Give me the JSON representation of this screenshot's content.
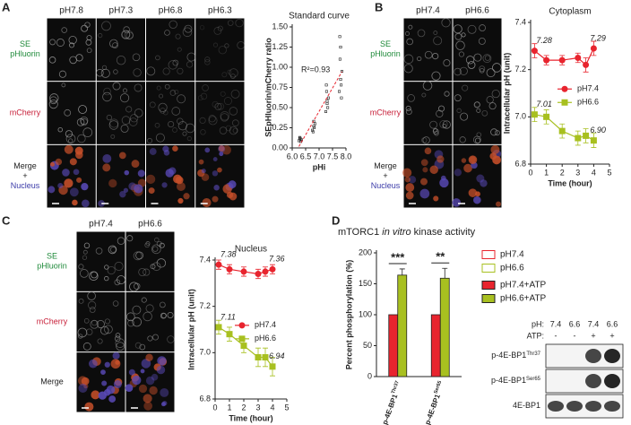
{
  "panels": [
    "A",
    "B",
    "C",
    "D"
  ],
  "images": [
    {
      "columns": [
        "pH7.8",
        "pH7.3",
        "pH6.8",
        "pH6.3"
      ],
      "rows": [
        {
          "lines": [
            "SE",
            "pHluorin"
          ],
          "colors": [
            "#1f8a3a",
            "#1f8a3a"
          ]
        },
        {
          "lines": [
            "mCherry"
          ],
          "colors": [
            "#c8203a"
          ]
        },
        {
          "lines": [
            "Merge",
            "+",
            "Nucleus"
          ],
          "colors": [
            "#222222",
            "#222222",
            "#3a3aa8"
          ]
        }
      ]
    },
    {
      "columns": [
        "pH7.4",
        "pH6.6"
      ],
      "rows": [
        {
          "lines": [
            "SE",
            "pHluorin"
          ],
          "colors": [
            "#1f8a3a",
            "#1f8a3a"
          ]
        },
        {
          "lines": [
            "mCherry"
          ],
          "colors": [
            "#c8203a"
          ]
        },
        {
          "lines": [
            "Merge",
            "+",
            "Nucleus"
          ],
          "colors": [
            "#222222",
            "#222222",
            "#3a3aa8"
          ]
        }
      ]
    },
    {
      "columns": [
        "pH7.4",
        "pH6.6"
      ],
      "rows": [
        {
          "lines": [
            "SE",
            "pHluorin"
          ],
          "colors": [
            "#1f8a3a",
            "#1f8a3a"
          ]
        },
        {
          "lines": [
            "mCherry"
          ],
          "colors": [
            "#c8203a"
          ]
        },
        {
          "lines": [
            "Merge"
          ],
          "colors": [
            "#222222"
          ]
        }
      ]
    }
  ],
  "blot": {
    "ph_label": "pH:",
    "ph": [
      "7.4",
      "6.6",
      "7.4",
      "6.6"
    ],
    "atp_label": "ATP:",
    "atp": [
      "-",
      "-",
      "+",
      "+"
    ],
    "rows": [
      {
        "name": "p-4E-BP1",
        "sup": "Thr37"
      },
      {
        "name": "p-4E-BP1",
        "sup": "Ser65"
      },
      {
        "name": "4E-BP1",
        "sup": ""
      }
    ]
  },
  "chart_data": [
    {
      "type": "scatter",
      "title": "Standard curve",
      "x_label": "pHi",
      "y_label": "SEpHluorin/mCherry ratio",
      "annotation": "R²=0.93",
      "color": "#222222",
      "fit_color": "#e8242e",
      "x": [
        6.25,
        6.3,
        6.35,
        6.28,
        6.32,
        6.3,
        6.75,
        6.8,
        6.85,
        6.78,
        6.82,
        6.8,
        7.25,
        7.3,
        7.35,
        7.28,
        7.32,
        7.3,
        7.27,
        7.75,
        7.8,
        7.85,
        7.78,
        7.82,
        7.8,
        7.77,
        7.83
      ],
      "values": [
        0.09,
        0.11,
        0.1,
        0.13,
        0.08,
        0.12,
        0.22,
        0.27,
        0.3,
        0.2,
        0.25,
        0.33,
        0.45,
        0.55,
        0.62,
        0.7,
        0.5,
        0.58,
        0.78,
        0.7,
        0.85,
        0.95,
        1.1,
        0.78,
        1.25,
        1.38,
        0.62
      ],
      "xlim": [
        6,
        8
      ],
      "xticks": [
        {
          "value": 6,
          "label": "6.0"
        },
        6.5,
        {
          "value": 7,
          "label": "7.0"
        },
        7.5,
        {
          "value": 8,
          "label": "8.0"
        }
      ],
      "ylim": [
        0,
        1.5
      ],
      "yticks": [
        {
          "value": 0,
          "label": "0.00"
        },
        0.25,
        {
          "value": 0.5,
          "label": "0.50"
        },
        0.75,
        {
          "value": 1,
          "label": "1.00"
        },
        1.25,
        {
          "value": 1.5,
          "label": "1.50"
        }
      ]
    },
    {
      "type": "line",
      "title": "Cytoplasm",
      "x_label": "Time (hour)",
      "y_label": "Intracellular pH (unit)",
      "legend": "center-right",
      "x": [
        0.25,
        1,
        2,
        3,
        3.5,
        4
      ],
      "series": [
        {
          "name": "pH7.4",
          "color": "#e8242e",
          "marker": "circle",
          "values": [
            7.28,
            7.24,
            7.24,
            7.25,
            7.22,
            7.29
          ],
          "errors": [
            0.03,
            0.02,
            0.02,
            0.02,
            0.03,
            0.03
          ],
          "value_labels": [
            "7.28",
            null,
            null,
            null,
            null,
            "7.29"
          ]
        },
        {
          "name": "pH6.6",
          "color": "#a8c020",
          "marker": "square",
          "values": [
            7.01,
            7.0,
            6.94,
            6.91,
            6.92,
            6.9
          ],
          "errors": [
            0.03,
            0.03,
            0.03,
            0.03,
            0.03,
            0.03
          ],
          "value_labels": [
            "7.01",
            null,
            null,
            null,
            null,
            "6.90"
          ]
        }
      ],
      "xlim": [
        0,
        5
      ],
      "xticks": [
        0,
        1,
        2,
        3,
        4,
        5
      ],
      "ylim": [
        6.8,
        7.4
      ],
      "yticks": [
        6.8,
        {
          "value": 7,
          "label": "7.0"
        },
        7.2,
        7.4
      ]
    },
    {
      "type": "line",
      "title": "Nucleus",
      "x_label": "Time (hour)",
      "y_label": "Intracellular pH (unit)",
      "legend": "center-right",
      "x": [
        0.25,
        1,
        2,
        3,
        3.5,
        4
      ],
      "series": [
        {
          "name": "pH7.4",
          "color": "#e8242e",
          "marker": "circle",
          "values": [
            7.38,
            7.36,
            7.35,
            7.34,
            7.35,
            7.36
          ],
          "errors": [
            0.02,
            0.02,
            0.02,
            0.02,
            0.02,
            0.02
          ],
          "value_labels": [
            "7.38",
            null,
            null,
            null,
            null,
            "7.36"
          ]
        },
        {
          "name": "pH6.6",
          "color": "#a8c020",
          "marker": "square",
          "values": [
            7.11,
            7.08,
            7.03,
            6.98,
            6.98,
            6.94
          ],
          "errors": [
            0.03,
            0.03,
            0.03,
            0.04,
            0.04,
            0.04
          ],
          "value_labels": [
            "7.11",
            null,
            null,
            null,
            null,
            "6.94"
          ]
        }
      ],
      "xlim": [
        0,
        5
      ],
      "xticks": [
        0,
        1,
        2,
        3,
        4,
        5
      ],
      "ylim": [
        6.8,
        7.4
      ],
      "yticks": [
        6.8,
        {
          "value": 7,
          "label": "7.0"
        },
        7.2,
        7.4
      ]
    },
    {
      "type": "bar",
      "title": [
        "mTORC1",
        "in vitro",
        "kinase activity"
      ],
      "y_label": "Percent phosphorylation (%)",
      "categories": [
        "p-4E-BP1",
        "p-4E-BP1"
      ],
      "category_superscripts": [
        "Thr37",
        "Ser65"
      ],
      "legend_entries": [
        {
          "name": "pH7.4",
          "color": "#e8242e",
          "filled": false
        },
        {
          "name": "pH6.6",
          "color": "#a8c020",
          "filled": false
        },
        {
          "name": "pH7.4+ATP",
          "color": "#e8242e",
          "filled": true
        },
        {
          "name": "pH6.6+ATP",
          "color": "#a8c020",
          "filled": true
        }
      ],
      "series": [
        {
          "name": "pH7.4+ATP",
          "color": "#e8242e",
          "values": [
            100,
            100
          ],
          "errors": [
            0,
            0
          ]
        },
        {
          "name": "pH6.6+ATP",
          "color": "#a8c020",
          "values": [
            164,
            159
          ],
          "errors": [
            10,
            16
          ]
        }
      ],
      "significance": [
        "***",
        "**"
      ],
      "ylim": [
        0,
        200
      ],
      "yticks": [
        0,
        50,
        100,
        150,
        200
      ]
    }
  ]
}
